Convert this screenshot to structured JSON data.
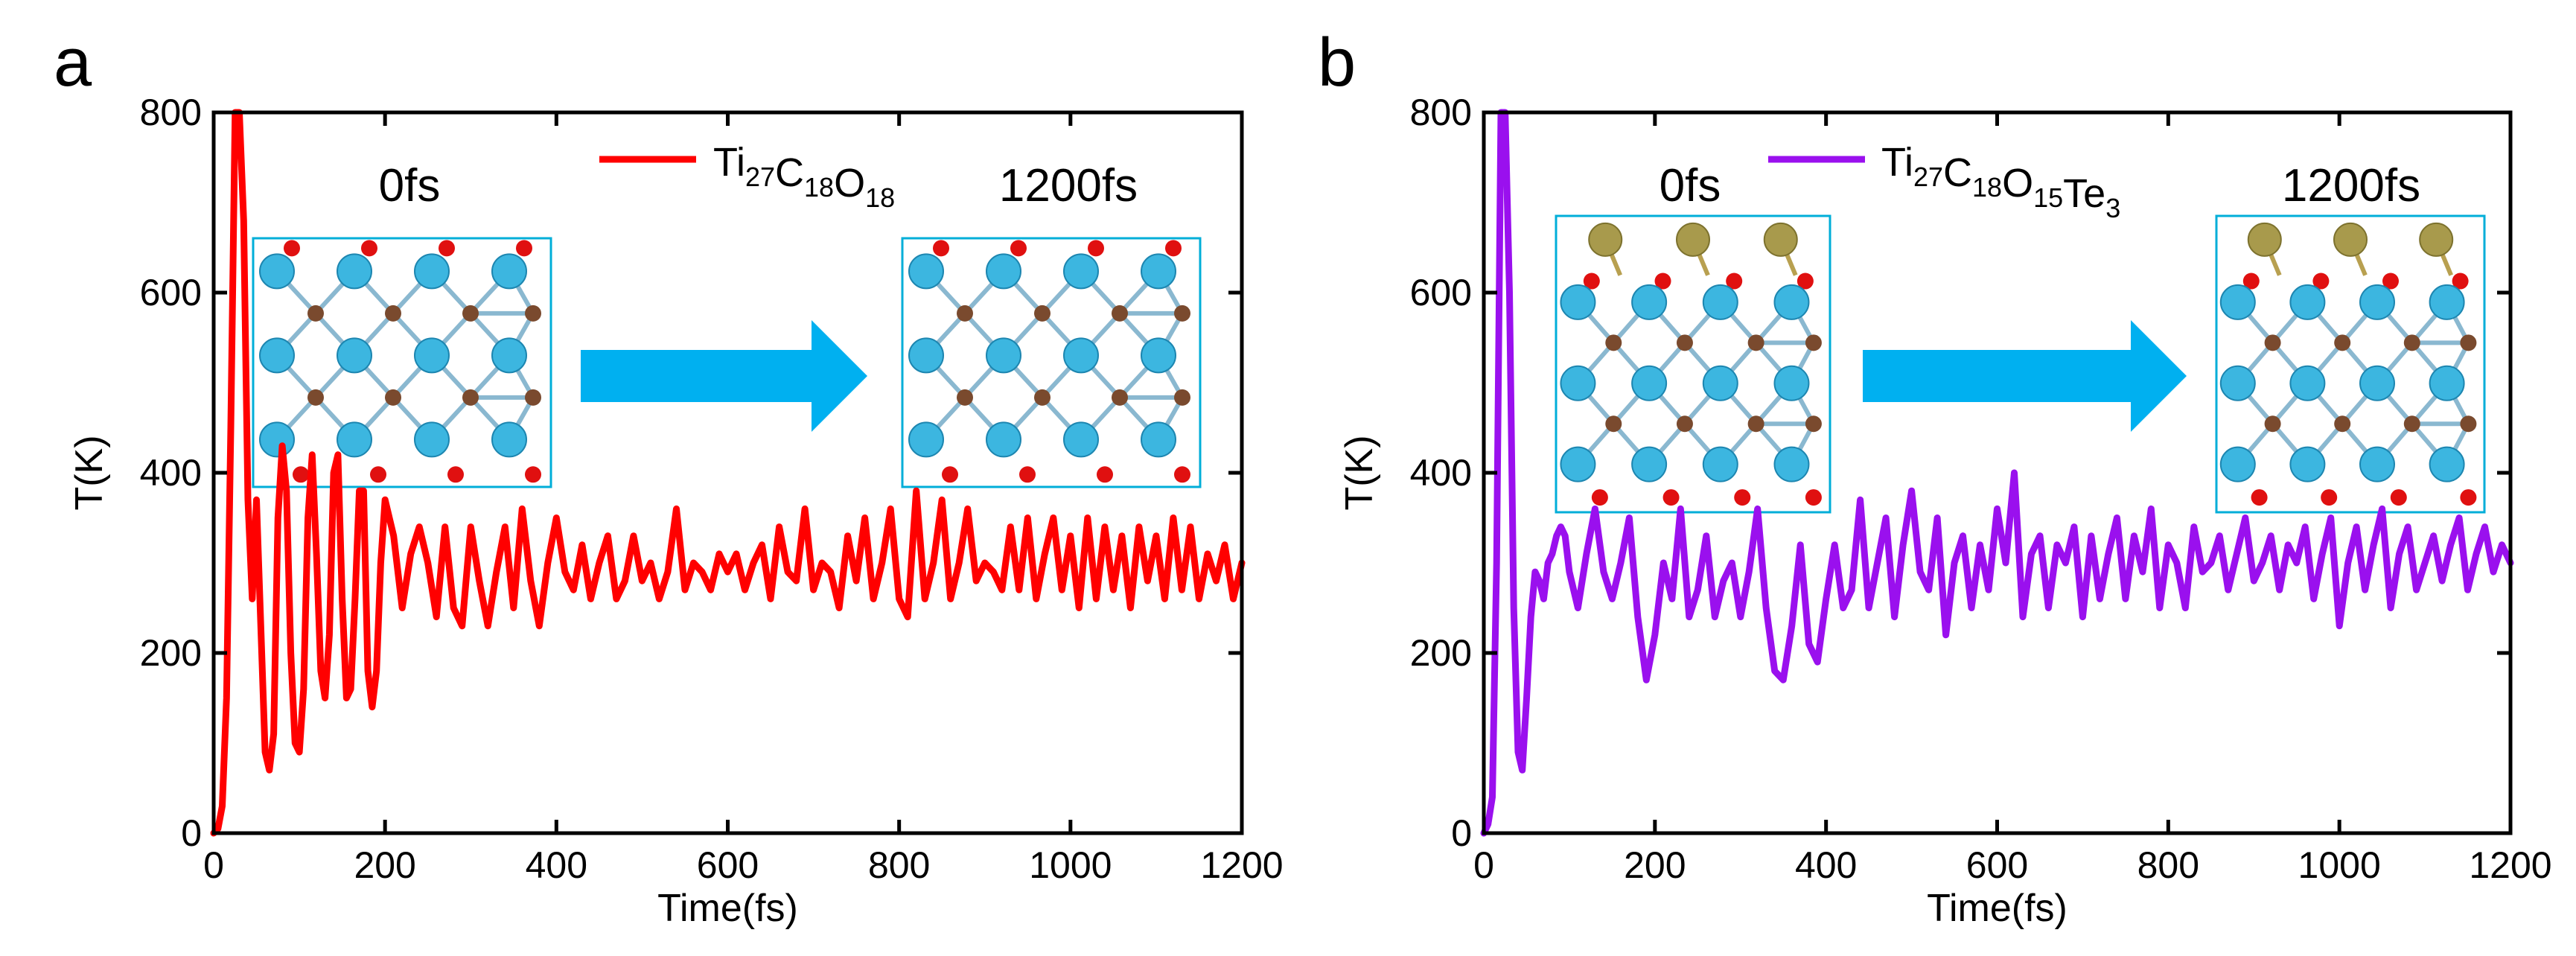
{
  "chart_data": [
    {
      "type": "line",
      "panel": "a",
      "title": "",
      "xlabel": "Time(fs)",
      "ylabel": "T(K)",
      "xlim": [
        0,
        1200
      ],
      "ylim": [
        0,
        800
      ],
      "xticks": [
        "0",
        "200",
        "400",
        "600",
        "800",
        "1000",
        "1200"
      ],
      "yticks": [
        "0",
        "200",
        "400",
        "600",
        "800"
      ],
      "legend": {
        "label": "Ti27C18O18",
        "parts": [
          {
            "t": "Ti",
            "sub": false
          },
          {
            "t": "27",
            "sub": true
          },
          {
            "t": "C",
            "sub": false
          },
          {
            "t": "18",
            "sub": true
          },
          {
            "t": "O",
            "sub": false
          },
          {
            "t": "18",
            "sub": true
          }
        ],
        "position": "top-center"
      },
      "inset": {
        "start_label": "0fs",
        "end_label": "1200fs",
        "start_has_te": false,
        "end_has_te": false
      },
      "series": [
        {
          "name": "Ti27C18O18",
          "color": "#ff0000",
          "x": [
            0,
            5,
            10,
            15,
            20,
            25,
            30,
            35,
            40,
            45,
            50,
            55,
            60,
            65,
            70,
            75,
            80,
            85,
            90,
            95,
            100,
            105,
            110,
            115,
            120,
            125,
            130,
            135,
            140,
            145,
            150,
            155,
            160,
            165,
            170,
            175,
            180,
            185,
            190,
            195,
            200,
            210,
            220,
            230,
            240,
            250,
            260,
            270,
            280,
            290,
            300,
            310,
            320,
            330,
            340,
            350,
            360,
            370,
            380,
            390,
            400,
            410,
            420,
            430,
            440,
            450,
            460,
            470,
            480,
            490,
            500,
            510,
            520,
            530,
            540,
            550,
            560,
            570,
            580,
            590,
            600,
            610,
            620,
            630,
            640,
            650,
            660,
            670,
            680,
            690,
            700,
            710,
            720,
            730,
            740,
            750,
            760,
            770,
            780,
            790,
            800,
            810,
            820,
            830,
            840,
            850,
            860,
            870,
            880,
            890,
            900,
            910,
            920,
            930,
            940,
            950,
            960,
            970,
            980,
            990,
            1000,
            1010,
            1020,
            1030,
            1040,
            1050,
            1060,
            1070,
            1080,
            1090,
            1100,
            1110,
            1120,
            1130,
            1140,
            1150,
            1160,
            1170,
            1180,
            1190,
            1200
          ],
          "values": [
            0,
            5,
            30,
            150,
            450,
            800,
            800,
            680,
            370,
            260,
            370,
            230,
            90,
            70,
            110,
            350,
            430,
            380,
            200,
            100,
            90,
            160,
            350,
            420,
            310,
            180,
            150,
            220,
            400,
            420,
            260,
            150,
            160,
            260,
            380,
            380,
            180,
            140,
            180,
            300,
            370,
            330,
            250,
            310,
            340,
            300,
            240,
            340,
            250,
            230,
            340,
            280,
            230,
            290,
            340,
            250,
            360,
            280,
            230,
            300,
            350,
            290,
            270,
            320,
            260,
            300,
            330,
            260,
            280,
            330,
            280,
            300,
            260,
            290,
            360,
            270,
            300,
            290,
            270,
            310,
            290,
            310,
            270,
            300,
            320,
            260,
            340,
            290,
            280,
            360,
            270,
            300,
            290,
            250,
            330,
            280,
            350,
            260,
            300,
            360,
            260,
            240,
            380,
            260,
            300,
            370,
            260,
            300,
            360,
            280,
            300,
            290,
            270,
            340,
            270,
            350,
            260,
            310,
            350,
            270,
            330,
            250,
            350,
            260,
            340,
            270,
            330,
            250,
            340,
            280,
            330,
            260,
            350,
            270,
            340,
            260,
            310,
            280,
            320,
            260,
            300
          ]
        }
      ]
    },
    {
      "type": "line",
      "panel": "b",
      "title": "",
      "xlabel": "Time(fs)",
      "ylabel": "T(K)",
      "xlim": [
        0,
        1200
      ],
      "ylim": [
        0,
        800
      ],
      "xticks": [
        "0",
        "200",
        "400",
        "600",
        "800",
        "1000",
        "1200"
      ],
      "yticks": [
        "0",
        "200",
        "400",
        "600",
        "800"
      ],
      "legend": {
        "label": "Ti27C18O15Te3",
        "parts": [
          {
            "t": "Ti",
            "sub": false
          },
          {
            "t": "27",
            "sub": true
          },
          {
            "t": "C",
            "sub": false
          },
          {
            "t": "18",
            "sub": true
          },
          {
            "t": "O",
            "sub": false
          },
          {
            "t": "15",
            "sub": true
          },
          {
            "t": "Te",
            "sub": false
          },
          {
            "t": "3",
            "sub": true
          }
        ],
        "position": "top-center"
      },
      "inset": {
        "start_label": "0fs",
        "end_label": "1200fs",
        "start_has_te": true,
        "end_has_te": true
      },
      "series": [
        {
          "name": "Ti27C18O15Te3",
          "color": "#9a10ee",
          "x": [
            0,
            5,
            10,
            15,
            20,
            25,
            30,
            35,
            40,
            45,
            50,
            55,
            60,
            65,
            70,
            75,
            80,
            85,
            90,
            95,
            100,
            110,
            120,
            130,
            140,
            150,
            160,
            170,
            180,
            190,
            200,
            210,
            220,
            230,
            240,
            250,
            260,
            270,
            280,
            290,
            300,
            310,
            320,
            330,
            340,
            350,
            360,
            370,
            380,
            390,
            400,
            410,
            420,
            430,
            440,
            450,
            460,
            470,
            480,
            490,
            500,
            510,
            520,
            530,
            540,
            550,
            560,
            570,
            580,
            590,
            600,
            610,
            620,
            630,
            640,
            650,
            660,
            670,
            680,
            690,
            700,
            710,
            720,
            730,
            740,
            750,
            760,
            770,
            780,
            790,
            800,
            810,
            820,
            830,
            840,
            850,
            860,
            870,
            880,
            890,
            900,
            910,
            920,
            930,
            940,
            950,
            960,
            970,
            980,
            990,
            1000,
            1010,
            1020,
            1030,
            1040,
            1050,
            1060,
            1070,
            1080,
            1090,
            1100,
            1110,
            1120,
            1130,
            1140,
            1150,
            1160,
            1170,
            1180,
            1190,
            1200
          ],
          "values": [
            0,
            10,
            40,
            300,
            800,
            800,
            600,
            250,
            90,
            70,
            150,
            240,
            290,
            280,
            260,
            300,
            310,
            330,
            340,
            330,
            290,
            250,
            310,
            360,
            290,
            260,
            300,
            350,
            240,
            170,
            220,
            300,
            260,
            360,
            240,
            270,
            330,
            240,
            280,
            300,
            240,
            290,
            360,
            250,
            180,
            170,
            230,
            320,
            210,
            190,
            260,
            320,
            250,
            270,
            370,
            250,
            300,
            350,
            240,
            320,
            380,
            290,
            270,
            350,
            220,
            300,
            330,
            250,
            320,
            270,
            360,
            300,
            400,
            240,
            310,
            330,
            250,
            320,
            300,
            340,
            240,
            330,
            260,
            310,
            350,
            260,
            330,
            290,
            360,
            250,
            320,
            300,
            250,
            340,
            290,
            300,
            330,
            270,
            310,
            350,
            280,
            300,
            330,
            270,
            320,
            300,
            340,
            260,
            310,
            350,
            230,
            300,
            340,
            270,
            320,
            360,
            250,
            310,
            340,
            270,
            300,
            330,
            280,
            320,
            350,
            270,
            310,
            340,
            290,
            320,
            300
          ]
        }
      ]
    }
  ]
}
